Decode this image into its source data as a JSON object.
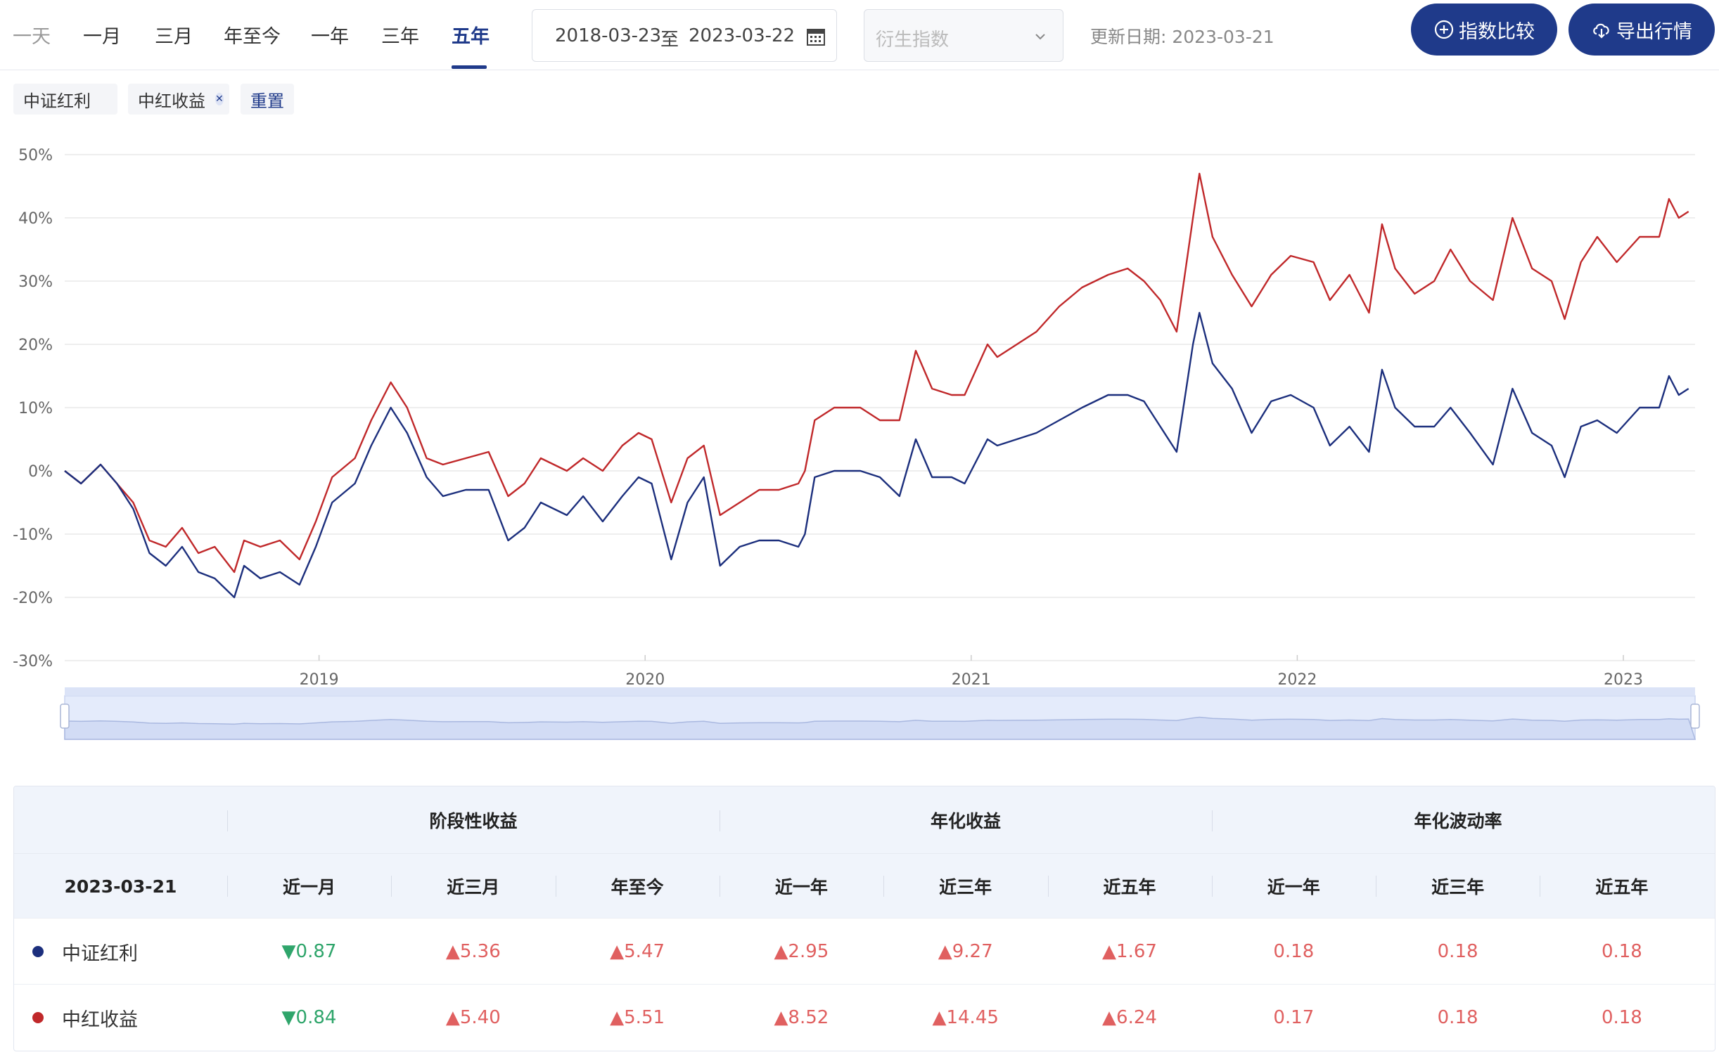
{
  "tabs": [
    {
      "label": "一天",
      "state": "muted"
    },
    {
      "label": "一月",
      "state": "normal"
    },
    {
      "label": "三月",
      "state": "normal"
    },
    {
      "label": "年至今",
      "state": "normal"
    },
    {
      "label": "一年",
      "state": "normal"
    },
    {
      "label": "三年",
      "state": "normal"
    },
    {
      "label": "五年",
      "state": "active"
    }
  ],
  "date_range": {
    "start": "2018-03-23",
    "sep": "至",
    "end": "2023-03-22"
  },
  "derivative_select": {
    "placeholder": "衍生指数"
  },
  "update_date": "更新日期: 2023-03-21",
  "buttons": {
    "compare": "指数比较",
    "export": "导出行情"
  },
  "chips": {
    "item1": "中证红利",
    "item2": "中红收益",
    "reset": "重置"
  },
  "colors": {
    "primary": "#1f3a8a",
    "series1": "#1c2f7d",
    "series2": "#c0282a",
    "up": "#e06060",
    "down": "#2fa56b"
  },
  "chart_data": {
    "type": "line",
    "y_unit": "%",
    "ylim": [
      -30,
      50
    ],
    "y_ticks": [
      "50%",
      "40%",
      "30%",
      "20%",
      "10%",
      "0%",
      "-10%",
      "-20%",
      "-30%"
    ],
    "x_ticks": [
      "2019",
      "2020",
      "2021",
      "2022",
      "2023"
    ],
    "x_range": [
      2018.22,
      2023.22
    ],
    "series": [
      {
        "name": "中证红利",
        "color": "#1c2f7d",
        "points": [
          [
            2018.22,
            0
          ],
          [
            2018.27,
            -2
          ],
          [
            2018.33,
            1
          ],
          [
            2018.38,
            -2
          ],
          [
            2018.43,
            -6
          ],
          [
            2018.48,
            -13
          ],
          [
            2018.53,
            -15
          ],
          [
            2018.58,
            -12
          ],
          [
            2018.63,
            -16
          ],
          [
            2018.68,
            -17
          ],
          [
            2018.74,
            -20
          ],
          [
            2018.77,
            -15
          ],
          [
            2018.82,
            -17
          ],
          [
            2018.88,
            -16
          ],
          [
            2018.94,
            -18
          ],
          [
            2018.99,
            -12
          ],
          [
            2019.04,
            -5
          ],
          [
            2019.11,
            -2
          ],
          [
            2019.16,
            4
          ],
          [
            2019.22,
            10
          ],
          [
            2019.27,
            6
          ],
          [
            2019.33,
            -1
          ],
          [
            2019.38,
            -4
          ],
          [
            2019.45,
            -3
          ],
          [
            2019.52,
            -3
          ],
          [
            2019.58,
            -11
          ],
          [
            2019.63,
            -9
          ],
          [
            2019.68,
            -5
          ],
          [
            2019.76,
            -7
          ],
          [
            2019.81,
            -4
          ],
          [
            2019.87,
            -8
          ],
          [
            2019.93,
            -4
          ],
          [
            2019.98,
            -1
          ],
          [
            2020.02,
            -2
          ],
          [
            2020.08,
            -14
          ],
          [
            2020.13,
            -5
          ],
          [
            2020.18,
            -1
          ],
          [
            2020.23,
            -15
          ],
          [
            2020.29,
            -12
          ],
          [
            2020.35,
            -11
          ],
          [
            2020.41,
            -11
          ],
          [
            2020.47,
            -12
          ],
          [
            2020.49,
            -10
          ],
          [
            2020.52,
            -1
          ],
          [
            2020.58,
            0
          ],
          [
            2020.66,
            0
          ],
          [
            2020.72,
            -1
          ],
          [
            2020.78,
            -4
          ],
          [
            2020.83,
            5
          ],
          [
            2020.88,
            -1
          ],
          [
            2020.94,
            -1
          ],
          [
            2020.98,
            -2
          ],
          [
            2021.05,
            5
          ],
          [
            2021.08,
            4
          ],
          [
            2021.14,
            5
          ],
          [
            2021.2,
            6
          ],
          [
            2021.27,
            8
          ],
          [
            2021.34,
            10
          ],
          [
            2021.42,
            12
          ],
          [
            2021.48,
            12
          ],
          [
            2021.53,
            11
          ],
          [
            2021.58,
            7
          ],
          [
            2021.63,
            3
          ],
          [
            2021.68,
            20
          ],
          [
            2021.7,
            25
          ],
          [
            2021.74,
            17
          ],
          [
            2021.8,
            13
          ],
          [
            2021.86,
            6
          ],
          [
            2021.92,
            11
          ],
          [
            2021.98,
            12
          ],
          [
            2022.05,
            10
          ],
          [
            2022.1,
            4
          ],
          [
            2022.16,
            7
          ],
          [
            2022.22,
            3
          ],
          [
            2022.26,
            16
          ],
          [
            2022.3,
            10
          ],
          [
            2022.36,
            7
          ],
          [
            2022.42,
            7
          ],
          [
            2022.47,
            10
          ],
          [
            2022.53,
            6
          ],
          [
            2022.6,
            1
          ],
          [
            2022.66,
            13
          ],
          [
            2022.72,
            6
          ],
          [
            2022.78,
            4
          ],
          [
            2022.82,
            -1
          ],
          [
            2022.87,
            7
          ],
          [
            2022.92,
            8
          ],
          [
            2022.98,
            6
          ],
          [
            2023.05,
            10
          ],
          [
            2023.11,
            10
          ],
          [
            2023.14,
            15
          ],
          [
            2023.17,
            12
          ],
          [
            2023.2,
            13
          ]
        ]
      },
      {
        "name": "中红收益",
        "color": "#c0282a",
        "points": [
          [
            2018.22,
            0
          ],
          [
            2018.27,
            -2
          ],
          [
            2018.33,
            1
          ],
          [
            2018.38,
            -2
          ],
          [
            2018.43,
            -5
          ],
          [
            2018.48,
            -11
          ],
          [
            2018.53,
            -12
          ],
          [
            2018.58,
            -9
          ],
          [
            2018.63,
            -13
          ],
          [
            2018.68,
            -12
          ],
          [
            2018.74,
            -16
          ],
          [
            2018.77,
            -11
          ],
          [
            2018.82,
            -12
          ],
          [
            2018.88,
            -11
          ],
          [
            2018.94,
            -14
          ],
          [
            2018.99,
            -8
          ],
          [
            2019.04,
            -1
          ],
          [
            2019.11,
            2
          ],
          [
            2019.16,
            8
          ],
          [
            2019.22,
            14
          ],
          [
            2019.27,
            10
          ],
          [
            2019.33,
            2
          ],
          [
            2019.38,
            1
          ],
          [
            2019.45,
            2
          ],
          [
            2019.52,
            3
          ],
          [
            2019.58,
            -4
          ],
          [
            2019.63,
            -2
          ],
          [
            2019.68,
            2
          ],
          [
            2019.76,
            0
          ],
          [
            2019.81,
            2
          ],
          [
            2019.87,
            0
          ],
          [
            2019.93,
            4
          ],
          [
            2019.98,
            6
          ],
          [
            2020.02,
            5
          ],
          [
            2020.08,
            -5
          ],
          [
            2020.13,
            2
          ],
          [
            2020.18,
            4
          ],
          [
            2020.23,
            -7
          ],
          [
            2020.29,
            -5
          ],
          [
            2020.35,
            -3
          ],
          [
            2020.41,
            -3
          ],
          [
            2020.47,
            -2
          ],
          [
            2020.49,
            0
          ],
          [
            2020.52,
            8
          ],
          [
            2020.58,
            10
          ],
          [
            2020.66,
            10
          ],
          [
            2020.72,
            8
          ],
          [
            2020.78,
            8
          ],
          [
            2020.83,
            19
          ],
          [
            2020.88,
            13
          ],
          [
            2020.94,
            12
          ],
          [
            2020.98,
            12
          ],
          [
            2021.05,
            20
          ],
          [
            2021.08,
            18
          ],
          [
            2021.14,
            20
          ],
          [
            2021.2,
            22
          ],
          [
            2021.27,
            26
          ],
          [
            2021.34,
            29
          ],
          [
            2021.42,
            31
          ],
          [
            2021.48,
            32
          ],
          [
            2021.53,
            30
          ],
          [
            2021.58,
            27
          ],
          [
            2021.63,
            22
          ],
          [
            2021.68,
            40
          ],
          [
            2021.7,
            47
          ],
          [
            2021.74,
            37
          ],
          [
            2021.8,
            31
          ],
          [
            2021.86,
            26
          ],
          [
            2021.92,
            31
          ],
          [
            2021.98,
            34
          ],
          [
            2022.05,
            33
          ],
          [
            2022.1,
            27
          ],
          [
            2022.16,
            31
          ],
          [
            2022.22,
            25
          ],
          [
            2022.26,
            39
          ],
          [
            2022.3,
            32
          ],
          [
            2022.36,
            28
          ],
          [
            2022.42,
            30
          ],
          [
            2022.47,
            35
          ],
          [
            2022.53,
            30
          ],
          [
            2022.6,
            27
          ],
          [
            2022.66,
            40
          ],
          [
            2022.72,
            32
          ],
          [
            2022.78,
            30
          ],
          [
            2022.82,
            24
          ],
          [
            2022.87,
            33
          ],
          [
            2022.92,
            37
          ],
          [
            2022.98,
            33
          ],
          [
            2023.05,
            37
          ],
          [
            2023.11,
            37
          ],
          [
            2023.14,
            43
          ],
          [
            2023.17,
            40
          ],
          [
            2023.2,
            41
          ]
        ]
      }
    ]
  },
  "table": {
    "group_headers": [
      "阶段性收益",
      "年化收益",
      "年化波动率"
    ],
    "date": "2023-03-21",
    "columns": [
      "近一月",
      "近三月",
      "年至今",
      "近一年",
      "近三年",
      "近五年",
      "近一年",
      "近三年",
      "近五年"
    ],
    "rows": [
      {
        "name": "中证红利",
        "color": "#1c2f7d",
        "values": [
          {
            "text": "▼0.87",
            "dir": "down"
          },
          {
            "text": "▲5.36",
            "dir": "up"
          },
          {
            "text": "▲5.47",
            "dir": "up"
          },
          {
            "text": "▲2.95",
            "dir": "up"
          },
          {
            "text": "▲9.27",
            "dir": "up"
          },
          {
            "text": "▲1.67",
            "dir": "up"
          },
          {
            "text": "0.18",
            "dir": "up"
          },
          {
            "text": "0.18",
            "dir": "up"
          },
          {
            "text": "0.18",
            "dir": "up"
          }
        ]
      },
      {
        "name": "中红收益",
        "color": "#c0282a",
        "values": [
          {
            "text": "▼0.84",
            "dir": "down"
          },
          {
            "text": "▲5.40",
            "dir": "up"
          },
          {
            "text": "▲5.51",
            "dir": "up"
          },
          {
            "text": "▲8.52",
            "dir": "up"
          },
          {
            "text": "▲14.45",
            "dir": "up"
          },
          {
            "text": "▲6.24",
            "dir": "up"
          },
          {
            "text": "0.17",
            "dir": "up"
          },
          {
            "text": "0.18",
            "dir": "up"
          },
          {
            "text": "0.18",
            "dir": "up"
          }
        ]
      }
    ]
  }
}
